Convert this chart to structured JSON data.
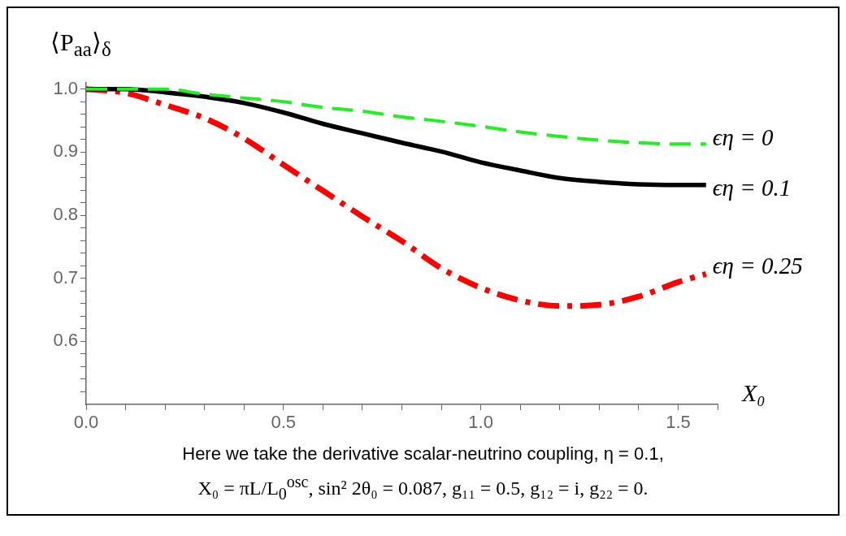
{
  "chart_data": {
    "type": "line",
    "xlabel": "X₀",
    "ylabel": "⟨P$_{aa}$⟩$_{δ}$",
    "x": [
      0,
      0.1,
      0.2,
      0.3,
      0.4,
      0.5,
      0.6,
      0.7,
      0.8,
      0.9,
      1.0,
      1.1,
      1.2,
      1.3,
      1.4,
      1.5,
      1.5708
    ],
    "series": [
      {
        "name": "ϵη = 0",
        "color": "#22ee22",
        "line_style": "dashed",
        "values": [
          1.0,
          1.0,
          1.0,
          0.992,
          0.986,
          0.98,
          0.971,
          0.965,
          0.956,
          0.949,
          0.941,
          0.932,
          0.925,
          0.919,
          0.915,
          0.913,
          0.913
        ]
      },
      {
        "name": "ϵη = 0.1",
        "color": "#000000",
        "line_style": "solid",
        "values": [
          1.0,
          1.0,
          0.995,
          0.988,
          0.978,
          0.963,
          0.945,
          0.93,
          0.915,
          0.901,
          0.884,
          0.871,
          0.859,
          0.853,
          0.849,
          0.848,
          0.848
        ]
      },
      {
        "name": "ϵη = 0.25",
        "color": "#ff0000",
        "line_style": "dashdot",
        "values": [
          1.0,
          0.994,
          0.975,
          0.954,
          0.922,
          0.88,
          0.839,
          0.798,
          0.759,
          0.716,
          0.685,
          0.665,
          0.656,
          0.658,
          0.671,
          0.694,
          0.707
        ]
      }
    ],
    "xlim": [
      0,
      1.6
    ],
    "xticks": [
      {
        "value": 0,
        "label": "0.0"
      },
      {
        "value": 0.1,
        "label": null
      },
      {
        "value": 0.2,
        "label": null
      },
      {
        "value": 0.3,
        "label": null
      },
      {
        "value": 0.4,
        "label": null
      },
      0.5,
      {
        "value": 0.6,
        "label": null
      },
      {
        "value": 0.7,
        "label": null
      },
      {
        "value": 0.8,
        "label": null
      },
      {
        "value": 0.9,
        "label": null
      },
      {
        "value": 1,
        "label": "1.0"
      },
      {
        "value": 1.1,
        "label": null
      },
      {
        "value": 1.2,
        "label": null
      },
      {
        "value": 1.3,
        "label": null
      },
      {
        "value": 1.4,
        "label": null
      },
      1.5,
      {
        "value": 1.6,
        "label": null
      }
    ],
    "ylim": [
      0.5,
      1.01
    ],
    "yticks": [
      {
        "value": 0.52,
        "label": null
      },
      {
        "value": 0.54,
        "label": null
      },
      {
        "value": 0.56,
        "label": null
      },
      {
        "value": 0.58,
        "label": null
      },
      0.6,
      {
        "value": 0.62,
        "label": null
      },
      {
        "value": 0.64,
        "label": null
      },
      {
        "value": 0.66,
        "label": null
      },
      {
        "value": 0.68,
        "label": null
      },
      0.7,
      {
        "value": 0.72,
        "label": null
      },
      {
        "value": 0.74,
        "label": null
      },
      {
        "value": 0.76,
        "label": null
      },
      {
        "value": 0.78,
        "label": null
      },
      0.8,
      {
        "value": 0.82,
        "label": null
      },
      {
        "value": 0.84,
        "label": null
      },
      {
        "value": 0.86,
        "label": null
      },
      {
        "value": 0.88,
        "label": null
      },
      0.9,
      {
        "value": 0.92,
        "label": null
      },
      {
        "value": 0.94,
        "label": null
      },
      {
        "value": 0.96,
        "label": null
      },
      {
        "value": 0.98,
        "label": null
      },
      {
        "value": 1,
        "label": "1.0"
      }
    ],
    "grid": false,
    "legend": false,
    "marker": "none",
    "annotations": [
      "Here we take the derivative scalar-neutrino coupling, η = 0.1,",
      "X₀ = πL/L$_{0}$$^{osc}$, sin² 2θ₀ = 0.087, g₁₁ = 0.5, g₁₂ = i, g₂₂ = 0."
    ]
  }
}
